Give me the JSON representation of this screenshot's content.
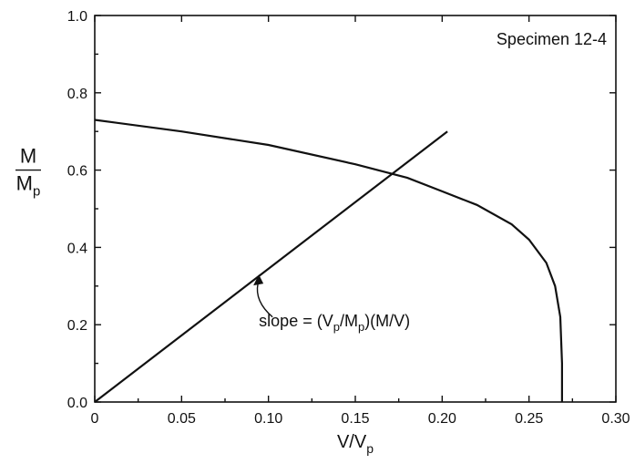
{
  "chart_data": {
    "type": "line",
    "title": "",
    "annotation_box": "Specimen 12-4",
    "xlabel": {
      "main": "V/V",
      "sub": "p"
    },
    "ylabel": {
      "numerator": "M",
      "denominator_main": "M",
      "denominator_sub": "p"
    },
    "xlim": [
      0,
      0.3
    ],
    "ylim": [
      0,
      1.0
    ],
    "x_ticks": [
      "0",
      "0.05",
      "0.10",
      "0.15",
      "0.20",
      "0.25",
      "0.30"
    ],
    "y_ticks": [
      "0.0",
      "0.2",
      "0.4",
      "0.6",
      "0.8",
      "1.0"
    ],
    "grid": false,
    "series": [
      {
        "x": [
          0,
          0.05,
          0.1,
          0.15,
          0.18,
          0.2,
          0.22,
          0.24,
          0.25,
          0.26,
          0.265,
          0.268,
          0.269,
          0.269
        ],
        "y": [
          0.73,
          0.7,
          0.665,
          0.615,
          0.58,
          0.545,
          0.51,
          0.46,
          0.42,
          0.36,
          0.3,
          0.22,
          0.1,
          0.0
        ]
      },
      {
        "x": [
          0,
          0.203
        ],
        "y": [
          0,
          0.7
        ]
      }
    ],
    "callout": {
      "text_pre": "slope = (V",
      "sub1": "p",
      "text_mid": "/M",
      "sub2": "p",
      "text_post": ")(M/V)",
      "target": {
        "x": 0.095,
        "y": 0.33
      }
    }
  }
}
